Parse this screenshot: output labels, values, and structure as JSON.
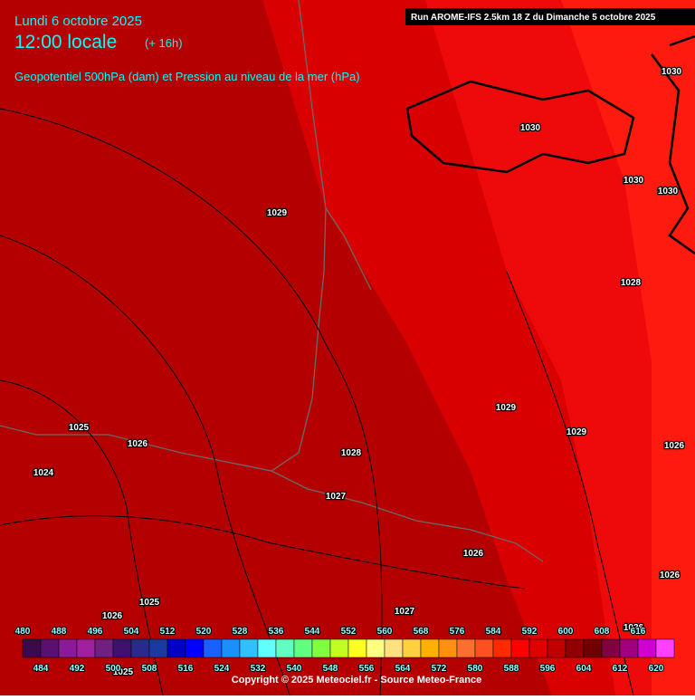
{
  "header": {
    "date": "Lundi 6 octobre 2025",
    "time": "12:00 locale",
    "offset": "(+ 16h)",
    "subtitle": "Geopotentiel 500hPa (dam) et Pression au niveau de la mer (hPa)",
    "run": "Run AROME-IFS 2.5km 18 Z du Dimanche 5 octobre 2025"
  },
  "isobar_labels": [
    1030,
    1030,
    1030,
    1030,
    1029,
    1028,
    1029,
    1029,
    1025,
    1026,
    1026,
    1028,
    1024,
    1027,
    1026,
    1026,
    1025,
    1026,
    1027,
    1026,
    1025
  ],
  "legend": {
    "values": [
      480,
      484,
      488,
      492,
      496,
      500,
      504,
      508,
      512,
      516,
      520,
      524,
      528,
      532,
      536,
      540,
      544,
      548,
      552,
      556,
      560,
      564,
      568,
      572,
      576,
      580,
      584,
      588,
      592,
      596,
      600,
      604,
      608,
      612,
      616,
      620
    ],
    "colors": [
      "#3a0a4a",
      "#5a1070",
      "#8a1a9a",
      "#a020a0",
      "#702080",
      "#401070",
      "#2a2a8a",
      "#1a3aa0",
      "#0000c8",
      "#0000ff",
      "#1a60ff",
      "#1a90ff",
      "#30c0ff",
      "#60ffff",
      "#60ffc0",
      "#60ff80",
      "#80ff40",
      "#c0ff20",
      "#ffff20",
      "#ffff80",
      "#ffe080",
      "#ffd040",
      "#ffb000",
      "#ff9010",
      "#ff7030",
      "#ff5020",
      "#ff2a00",
      "#ff0000",
      "#e00000",
      "#c00000",
      "#900000",
      "#700000",
      "#800040",
      "#a00080",
      "#d000d0",
      "#ff40ff"
    ]
  },
  "footer": {
    "copyright": "Copyright © 2025 Meteociel.fr - Source Meteo-France"
  }
}
